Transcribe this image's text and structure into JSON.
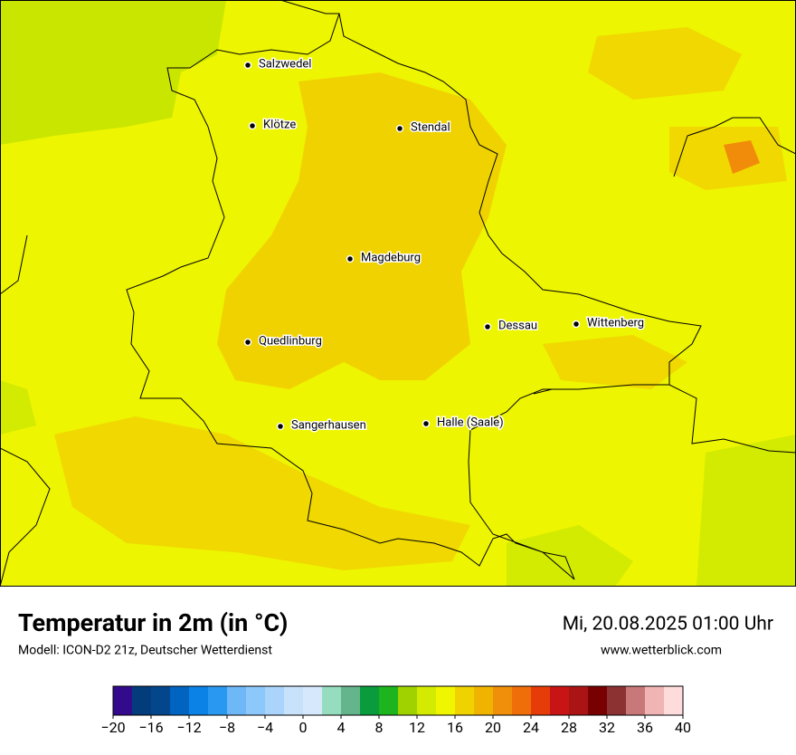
{
  "map": {
    "cities": [
      "Salzwedel",
      "Klötze",
      "Stendal",
      "Magdeburg",
      "Dessau",
      "Wittenberg",
      "Quedlinburg",
      "Sangerhausen",
      "Halle (Saale)"
    ]
  },
  "header": {
    "title": "Temperatur in 2m (in °C)",
    "subtitle": "Modell: ICON-D2 21z, Deutscher Wetterdienst",
    "datetime": "Mi, 20.08.2025 01:00 Uhr",
    "website": "www.wetterblick.com"
  },
  "colorbar": {
    "min": -20,
    "max": 40,
    "colors": [
      "#330a8c",
      "#023c7a",
      "#03468c",
      "#0064c0",
      "#0a82e6",
      "#2898f0",
      "#6eb8f8",
      "#8cc8fa",
      "#aad4fc",
      "#c8e2fc",
      "#d6e8fc",
      "#96dcbe",
      "#64b48c",
      "#0a9b3c",
      "#1eb41e",
      "#a0d200",
      "#d2eb00",
      "#f0f500",
      "#f0d200",
      "#f0b400",
      "#f0900a",
      "#f06e0a",
      "#e63c0a",
      "#c81414",
      "#aa1414",
      "#780000",
      "#8c3232",
      "#c87878",
      "#f0b4b4",
      "#ffdcdc"
    ],
    "ticks": [
      {
        "value": -20,
        "label": "−20"
      },
      {
        "value": -16,
        "label": "−16"
      },
      {
        "value": -12,
        "label": "−12"
      },
      {
        "value": -8,
        "label": "−8"
      },
      {
        "value": -4,
        "label": "−4"
      },
      0,
      4,
      8,
      12,
      16,
      20,
      24,
      28,
      32,
      36,
      40
    ]
  }
}
